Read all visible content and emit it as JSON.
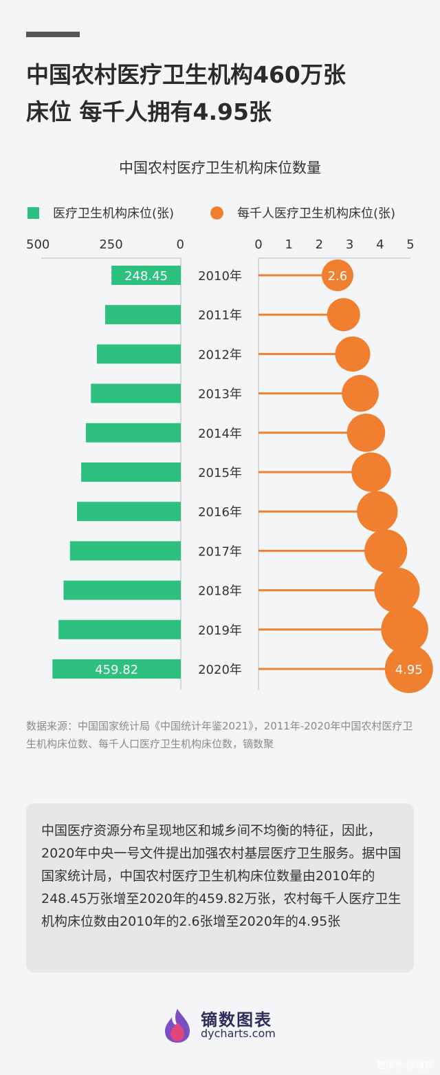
{
  "title_line1": "中国农村医疗卫生机构460万张",
  "title_line2": "床位  每千人拥有4.95张",
  "chart_data": {
    "type": "bar",
    "title": "中国农村医疗卫生机构床位数量",
    "categories": [
      "2010年",
      "2011年",
      "2012年",
      "2013年",
      "2014年",
      "2015年",
      "2016年",
      "2017年",
      "2018年",
      "2019年",
      "2020年"
    ],
    "series": [
      {
        "name": "医疗卫生机构床位(张)",
        "type": "bar",
        "color": "#2dc07e",
        "values": [
          248.45,
          271.0,
          300.5,
          322.0,
          340.0,
          357.0,
          372.0,
          397.0,
          420.0,
          438.0,
          459.82
        ],
        "xlim": [
          0,
          500
        ],
        "ticks": [
          "500",
          "250",
          "0"
        ],
        "direction": "right-to-left"
      },
      {
        "name": "每千人医疗卫生机构床位(张)",
        "type": "lollipop",
        "color": "#f08030",
        "values": [
          2.6,
          2.8,
          3.1,
          3.35,
          3.54,
          3.71,
          3.91,
          4.19,
          4.56,
          4.81,
          4.95
        ],
        "xlim": [
          0,
          5
        ],
        "ticks": [
          "0",
          "1",
          "2",
          "3",
          "4",
          "5"
        ]
      }
    ],
    "labels": [
      {
        "series": 0,
        "index": 0,
        "text": "248.45"
      },
      {
        "series": 0,
        "index": 10,
        "text": "459.82"
      },
      {
        "series": 1,
        "index": 0,
        "text": "2.6"
      },
      {
        "series": 1,
        "index": 10,
        "text": "4.95"
      }
    ]
  },
  "source": "数据来源：中国国家统计局《中国统计年鉴2021》，2011年-2020年中国农村医疗卫生机构床位数、每千人口医疗卫生机构床位数，镝数聚",
  "summary": "中国医疗资源分布呈现地区和城乡间不均衡的特征，因此，2020年中央一号文件提出加强农村基层医疗卫生服务。据中国国家统计局，中国农村医疗卫生机构床位数量由2010年的248.45万张增至2020年的459.82万张，农村每千人医疗卫生机构床位数由2010年的2.6张增至2020年的4.95张",
  "brand": {
    "name_cn": "镝数图表",
    "name_en": "dycharts.com"
  },
  "footer": "趣拼号 @镝数",
  "colors": {
    "accent_green": "#2dc07e",
    "accent_orange": "#f08030",
    "brand_navy": "#2c2d5a"
  }
}
